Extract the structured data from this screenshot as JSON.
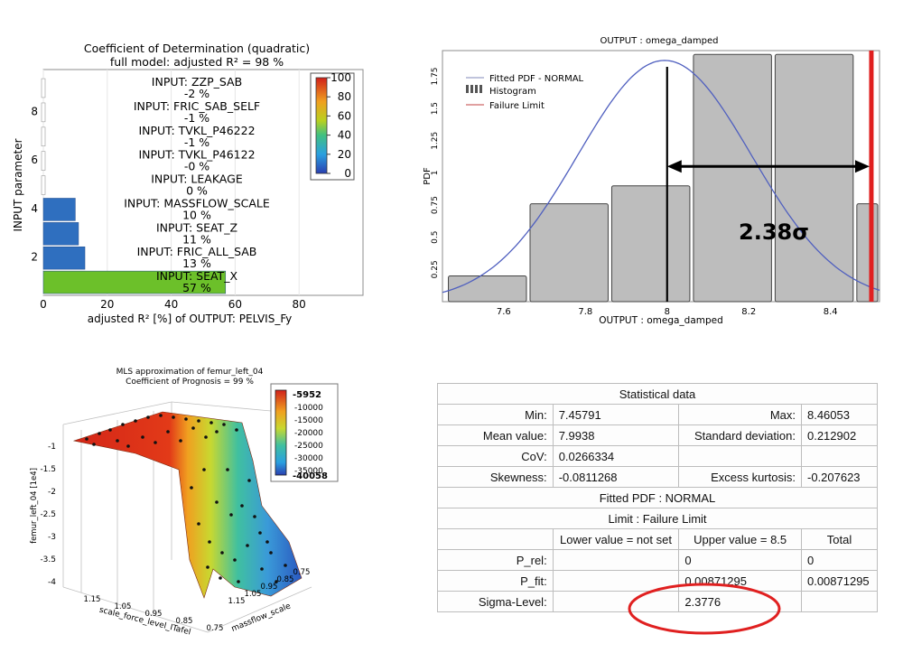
{
  "colors": {
    "accent_red": "#e02020",
    "bar_blue": "#2f6fbf",
    "bar_green": "#6cc02a",
    "hist_gray": "#bdbdbd",
    "fit_line": "#4f5fbf"
  },
  "panel_r2": {
    "title": "Coefficient of Determination (quadratic)",
    "subtitle": "full model: adjusted R² =    98 %",
    "ylabel": "INPUT parameter",
    "xlabel": "adjusted R² [%] of OUTPUT: PELVIS_Fy",
    "x_ticks": [
      "0",
      "20",
      "40",
      "60",
      "80"
    ],
    "y_ticks": [
      "2",
      "4",
      "6",
      "8"
    ],
    "colorbar_ticks": [
      "100",
      "80",
      "60",
      "40",
      "20",
      "0"
    ]
  },
  "chart_data": [
    {
      "type": "bar",
      "orientation": "horizontal",
      "title": "Coefficient of Determination (quadratic)",
      "subtitle": "full model: adjusted R² =    98 %",
      "xlabel": "adjusted R² [%] of OUTPUT: PELVIS_Fy",
      "ylabel": "INPUT parameter",
      "xlim": [
        0,
        100
      ],
      "categories": [
        "INPUT: SEAT_X",
        "INPUT: FRIC_ALL_SAB",
        "INPUT: SEAT_Z",
        "INPUT: MASSFLOW_SCALE",
        "INPUT: LEAKAGE",
        "INPUT: TVKL_P46122",
        "INPUT: TVKL_P46222",
        "INPUT: FRIC_SAB_SELF",
        "INPUT: ZZP_SAB"
      ],
      "value_labels": [
        "57 %",
        "13 %",
        "11 %",
        "10 %",
        "0 %",
        "-0 %",
        "-1 %",
        "-1 %",
        "-2 %"
      ],
      "values": [
        57,
        13,
        11,
        10,
        0,
        0,
        -1,
        -1,
        -2
      ]
    },
    {
      "type": "bar",
      "title": "OUTPUT : omega_damped",
      "xlabel": "OUTPUT : omega_damped",
      "ylabel": "PDF",
      "xlim": [
        7.45,
        8.52
      ],
      "ylim": [
        0,
        1.95
      ],
      "x_ticks": [
        "7.6",
        "7.8",
        "8",
        "8.2",
        "8.4"
      ],
      "y_ticks": [
        "0.25",
        "0.5",
        "0.75",
        "1",
        "1.25",
        "1.5",
        "1.75"
      ],
      "legend": [
        "Fitted PDF - NORMAL",
        "Histogram",
        "Failure Limit"
      ],
      "legend_position": "top-left",
      "bins": [
        [
          7.46,
          7.66
        ],
        [
          7.66,
          7.86
        ],
        [
          7.86,
          8.06
        ],
        [
          8.06,
          8.26
        ],
        [
          8.26,
          8.46
        ],
        [
          8.46,
          8.66
        ]
      ],
      "values": [
        0.2,
        0.76,
        0.9,
        1.92,
        1.92,
        0.76
      ],
      "bins_note": "",
      "histogram": [
        {
          "x0": 7.46,
          "x1": 7.66,
          "pdf": 0.2
        },
        {
          "x0": 7.66,
          "x1": 7.86,
          "pdf": 0.76
        },
        {
          "x0": 7.86,
          "x1": 8.06,
          "pdf": 0.9
        },
        {
          "x0": 8.06,
          "x1": 8.26,
          "pdf": 1.92
        },
        {
          "x0": 8.26,
          "x1": 8.46,
          "pdf": 1.92
        },
        {
          "x0": 8.46,
          "x1": 8.66,
          "pdf": 0.76
        }
      ],
      "fitted_normal": {
        "mean": 7.9938,
        "std": 0.212902
      },
      "mean_line": 8.0,
      "failure_limit": 8.5,
      "annotation": "2.38σ"
    },
    {
      "type": "surface",
      "title": "MLS approximation of femur_left_04",
      "subtitle": "Coefficient of Prognosis =    99 %",
      "xlabel": "scale_force_level_ITafel",
      "ylabel": "massflow_scale",
      "zlabel": "femur_left_04 [1e4]",
      "x_ticks": [
        "1.15",
        "1.05",
        "0.95",
        "0.85",
        "0.75"
      ],
      "y_ticks": [
        "0.75",
        "0.85",
        "0.95",
        "1.05",
        "1.15"
      ],
      "z_ticks": [
        "-1",
        "-1.5",
        "-2",
        "-2.5",
        "-3",
        "-3.5",
        "-4"
      ],
      "colorbar_range": [
        -40058,
        -5952
      ],
      "colorbar_ticks": [
        "-10000",
        "-15000",
        "-20000",
        "-25000",
        "-30000",
        "-35000"
      ]
    }
  ],
  "panel_pdf": {
    "title": "OUTPUT : omega_damped",
    "ylabel": "PDF",
    "xlabel": "OUTPUT : omega_damped",
    "legend": {
      "fitted": "Fitted PDF - NORMAL",
      "histogram": "Histogram",
      "failure": "Failure Limit"
    },
    "annotation": "2.38σ"
  },
  "panel_surface": {
    "title": "MLS approximation of femur_left_04",
    "subtitle": "Coefficient of Prognosis =    99 %",
    "zlabel": "femur_left_04 [1e4]",
    "xlabel": "scale_force_level_ITafel",
    "ylabel": "massflow_scale",
    "colorbar_max": "-5952",
    "colorbar_min": "-40058"
  },
  "stats": {
    "title": "Statistical data",
    "min_label": "Min:",
    "min_value": "7.45791",
    "max_label": "Max:",
    "max_value": "8.46053",
    "mean_label": "Mean value:",
    "mean_value": "7.9938",
    "std_label": "Standard deviation:",
    "std_value": "0.212902",
    "cov_label": "CoV:",
    "cov_value": "0.0266334",
    "skew_label": "Skewness:",
    "skew_value": "-0.0811268",
    "kurt_label": "Excess kurtosis:",
    "kurt_value": "-0.207623",
    "fitted_pdf": "Fitted PDF : NORMAL",
    "limit": "Limit : Failure Limit",
    "col_lower": "Lower value = not set",
    "col_upper": "Upper value = 8.5",
    "col_total": "Total",
    "prel_label": "P_rel:",
    "prel_upper": "0",
    "prel_total": "0",
    "pfit_label": "P_fit:",
    "pfit_upper": "0.00871295",
    "pfit_total": "0.00871295",
    "sigma_label": "Sigma-Level:",
    "sigma_upper": "2.3776"
  }
}
